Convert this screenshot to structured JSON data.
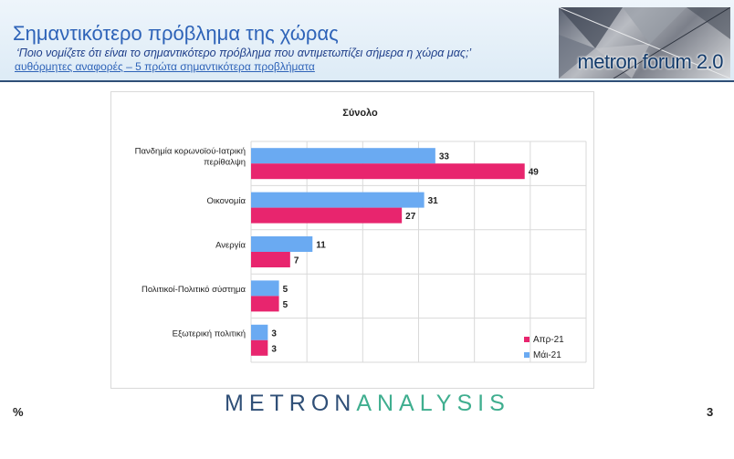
{
  "header": {
    "title": "Σημαντικότερο πρόβλημα της χώρας",
    "subtitle": "‘Ποιο νομίζετε ότι  είναι το σημαντικότερο πρόβλημα που αντιμετωπίζει σήμερα η χώρα μας;’",
    "subtitle2": "αυθόρμητες αναφορές – 5 πρώτα σημαντικότερα προβλήματα",
    "logo_text": "metron forum 2.0"
  },
  "footer": {
    "brand_part1": "METRON",
    "brand_part2": "ANALYSIS",
    "percent_label": "%",
    "page_number": "3"
  },
  "colors": {
    "apr": "#e8256e",
    "may": "#6aaaf2",
    "grid": "#d9d9d9",
    "text": "#222222"
  },
  "chart_data": {
    "type": "bar",
    "orientation": "horizontal",
    "title": "Σύνολο",
    "categories": [
      [
        "Πανδημία κορωνοϊού-Ιατρική",
        "περίθαλψη"
      ],
      [
        "Οικονομία"
      ],
      [
        "Ανεργία"
      ],
      [
        "Πολιτικοί-Πολιτικό σύστημα"
      ],
      [
        "Εξωτερική πολιτική"
      ]
    ],
    "series": [
      {
        "name": "Μάι-21",
        "color": "#6aaaf2",
        "values": [
          33,
          31,
          11,
          5,
          3
        ]
      },
      {
        "name": "Απρ-21",
        "color": "#e8256e",
        "values": [
          49,
          27,
          7,
          5,
          3
        ]
      }
    ],
    "xlim": [
      0,
      60
    ],
    "grid": true,
    "legend": "bottom-right",
    "legend_entries": [
      "Απρ-21",
      "Μάι-21"
    ]
  }
}
